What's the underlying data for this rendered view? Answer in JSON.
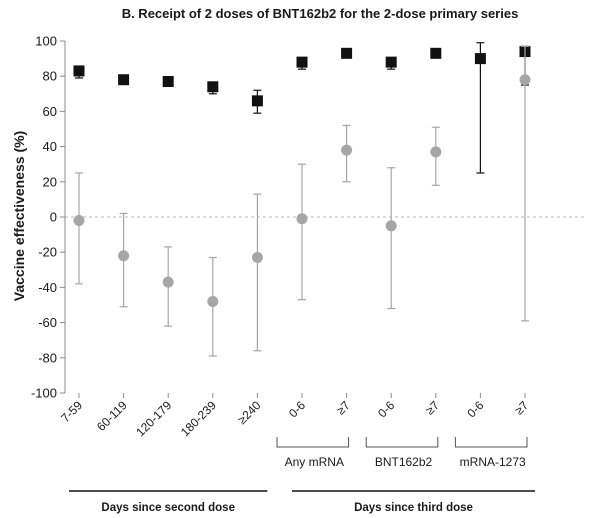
{
  "chart_data": {
    "type": "scatter",
    "title": "B. Receipt of 2 doses of BNT162b2 for the 2-dose primary series",
    "ylabel": "Vaccine effectiveness (%)",
    "ylim": [
      -100,
      100
    ],
    "yticks": [
      100,
      80,
      60,
      40,
      20,
      0,
      -20,
      -40,
      -60,
      -80,
      -100
    ],
    "categories": [
      "7-59",
      "60-119",
      "120-179",
      "180-239",
      "≥240",
      "0-6",
      "≥7",
      "0-6",
      "≥7",
      "0-6",
      "≥7"
    ],
    "groups": [
      {
        "label": "Any mRNA",
        "from": 5,
        "to": 6
      },
      {
        "label": "BNT162b2",
        "from": 7,
        "to": 8
      },
      {
        "label": "mRNA-1273",
        "from": 9,
        "to": 10
      }
    ],
    "sections": [
      {
        "label": "Days since second dose",
        "from": 0,
        "to": 4
      },
      {
        "label": "Days since third dose",
        "from": 5,
        "to": 10
      }
    ],
    "reference_line": 0,
    "colors": {
      "black_series": "#111111",
      "grey_series": "#a6a6a6",
      "reference": "#c8c8c8",
      "axis": "#8c8c8c"
    },
    "series": [
      {
        "marker": "square",
        "color": "#111111",
        "values": [
          83,
          78,
          77,
          74,
          66,
          88,
          93,
          88,
          93,
          90,
          94
        ],
        "lower": [
          79,
          77,
          76,
          70,
          59,
          84,
          92,
          84,
          92,
          25,
          75
        ],
        "upper": [
          85,
          80,
          78,
          76,
          72,
          90,
          94,
          90,
          94,
          99,
          97
        ]
      },
      {
        "marker": "circle",
        "color": "#a6a6a6",
        "values": [
          -2,
          -22,
          -37,
          -48,
          -23,
          -1,
          38,
          -5,
          37,
          null,
          78
        ],
        "lower": [
          -38,
          -51,
          -62,
          -79,
          -76,
          -47,
          20,
          -52,
          18,
          null,
          -59
        ],
        "upper": [
          25,
          2,
          -17,
          -23,
          13,
          30,
          52,
          28,
          51,
          null,
          97
        ]
      }
    ]
  }
}
